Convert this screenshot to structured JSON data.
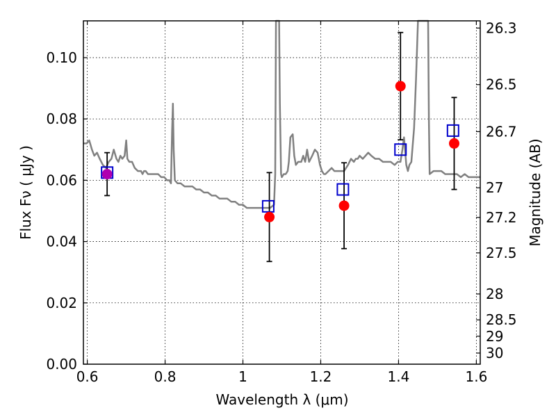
{
  "chart_data": {
    "type": "scatter",
    "xlabel": "Wavelength  λ (μm)",
    "ylabel": "Flux  Fν  ( μJy )",
    "ylabel_right": "Magnitude (AB)",
    "xlim": [
      0.59,
      1.61
    ],
    "ylim": [
      0.0,
      0.112
    ],
    "grid": true,
    "x_ticks": [
      {
        "v": 0.6,
        "label": "0.6"
      },
      {
        "v": 0.8,
        "label": "0.8"
      },
      {
        "v": 1.0,
        "label": "1"
      },
      {
        "v": 1.2,
        "label": "1.2"
      },
      {
        "v": 1.4,
        "label": "1.4"
      },
      {
        "v": 1.6,
        "label": "1.6"
      }
    ],
    "y_ticks": [
      {
        "v": 0.0,
        "label": "0.00"
      },
      {
        "v": 0.02,
        "label": "0.02"
      },
      {
        "v": 0.04,
        "label": "0.04"
      },
      {
        "v": 0.06,
        "label": "0.06"
      },
      {
        "v": 0.08,
        "label": "0.08"
      },
      {
        "v": 0.1,
        "label": "0.10"
      }
    ],
    "y_ticks_right": [
      {
        "v": 26.3,
        "label": "26.3"
      },
      {
        "v": 26.5,
        "label": "26.5"
      },
      {
        "v": 26.7,
        "label": "26.7"
      },
      {
        "v": 27.0,
        "label": "27"
      },
      {
        "v": 27.2,
        "label": "27.2"
      },
      {
        "v": 27.5,
        "label": "27.5"
      },
      {
        "v": 28.0,
        "label": "28"
      },
      {
        "v": 28.5,
        "label": "28.5"
      },
      {
        "v": 29.0,
        "label": "29"
      },
      {
        "v": 30.0,
        "label": "30"
      }
    ],
    "series": [
      {
        "kind": "line",
        "color": "#808080",
        "points": [
          [
            0.59,
            0.072
          ],
          [
            0.598,
            0.072
          ],
          [
            0.605,
            0.073
          ],
          [
            0.612,
            0.07
          ],
          [
            0.618,
            0.068
          ],
          [
            0.625,
            0.069
          ],
          [
            0.632,
            0.067
          ],
          [
            0.64,
            0.065
          ],
          [
            0.648,
            0.064
          ],
          [
            0.655,
            0.066
          ],
          [
            0.662,
            0.067
          ],
          [
            0.668,
            0.07
          ],
          [
            0.675,
            0.067
          ],
          [
            0.68,
            0.066
          ],
          [
            0.685,
            0.068
          ],
          [
            0.69,
            0.067
          ],
          [
            0.696,
            0.068
          ],
          [
            0.7,
            0.073
          ],
          [
            0.703,
            0.067
          ],
          [
            0.708,
            0.066
          ],
          [
            0.715,
            0.066
          ],
          [
            0.722,
            0.064
          ],
          [
            0.73,
            0.063
          ],
          [
            0.738,
            0.063
          ],
          [
            0.742,
            0.062
          ],
          [
            0.746,
            0.063
          ],
          [
            0.75,
            0.063
          ],
          [
            0.756,
            0.062
          ],
          [
            0.762,
            0.062
          ],
          [
            0.768,
            0.062
          ],
          [
            0.775,
            0.062
          ],
          [
            0.782,
            0.062
          ],
          [
            0.79,
            0.061
          ],
          [
            0.798,
            0.061
          ],
          [
            0.805,
            0.06
          ],
          [
            0.811,
            0.06
          ],
          [
            0.815,
            0.059
          ],
          [
            0.818,
            0.076
          ],
          [
            0.82,
            0.085
          ],
          [
            0.822,
            0.07
          ],
          [
            0.825,
            0.06
          ],
          [
            0.832,
            0.059
          ],
          [
            0.84,
            0.059
          ],
          [
            0.85,
            0.058
          ],
          [
            0.86,
            0.058
          ],
          [
            0.87,
            0.058
          ],
          [
            0.88,
            0.057
          ],
          [
            0.89,
            0.057
          ],
          [
            0.9,
            0.056
          ],
          [
            0.91,
            0.056
          ],
          [
            0.92,
            0.055
          ],
          [
            0.93,
            0.055
          ],
          [
            0.94,
            0.054
          ],
          [
            0.95,
            0.054
          ],
          [
            0.96,
            0.054
          ],
          [
            0.97,
            0.053
          ],
          [
            0.98,
            0.053
          ],
          [
            0.99,
            0.052
          ],
          [
            1.0,
            0.052
          ],
          [
            1.01,
            0.051
          ],
          [
            1.02,
            0.051
          ],
          [
            1.03,
            0.051
          ],
          [
            1.04,
            0.051
          ],
          [
            1.05,
            0.051
          ],
          [
            1.06,
            0.051
          ],
          [
            1.07,
            0.051
          ],
          [
            1.08,
            0.052
          ],
          [
            1.083,
            0.062
          ],
          [
            1.085,
            0.112
          ],
          [
            1.093,
            0.112
          ],
          [
            1.095,
            0.085
          ],
          [
            1.098,
            0.062
          ],
          [
            1.1,
            0.061
          ],
          [
            1.105,
            0.062
          ],
          [
            1.11,
            0.062
          ],
          [
            1.115,
            0.063
          ],
          [
            1.118,
            0.066
          ],
          [
            1.122,
            0.074
          ],
          [
            1.128,
            0.075
          ],
          [
            1.132,
            0.068
          ],
          [
            1.136,
            0.065
          ],
          [
            1.142,
            0.066
          ],
          [
            1.15,
            0.066
          ],
          [
            1.155,
            0.068
          ],
          [
            1.16,
            0.066
          ],
          [
            1.165,
            0.07
          ],
          [
            1.17,
            0.066
          ],
          [
            1.178,
            0.068
          ],
          [
            1.185,
            0.07
          ],
          [
            1.192,
            0.069
          ],
          [
            1.198,
            0.065
          ],
          [
            1.203,
            0.063
          ],
          [
            1.208,
            0.062
          ],
          [
            1.212,
            0.062
          ],
          [
            1.22,
            0.063
          ],
          [
            1.228,
            0.064
          ],
          [
            1.235,
            0.063
          ],
          [
            1.242,
            0.063
          ],
          [
            1.25,
            0.063
          ],
          [
            1.26,
            0.063
          ],
          [
            1.265,
            0.064
          ],
          [
            1.27,
            0.065
          ],
          [
            1.278,
            0.067
          ],
          [
            1.285,
            0.066
          ],
          [
            1.29,
            0.067
          ],
          [
            1.295,
            0.067
          ],
          [
            1.3,
            0.068
          ],
          [
            1.308,
            0.067
          ],
          [
            1.315,
            0.068
          ],
          [
            1.322,
            0.069
          ],
          [
            1.33,
            0.068
          ],
          [
            1.34,
            0.067
          ],
          [
            1.35,
            0.067
          ],
          [
            1.36,
            0.066
          ],
          [
            1.37,
            0.066
          ],
          [
            1.38,
            0.066
          ],
          [
            1.39,
            0.065
          ],
          [
            1.398,
            0.066
          ],
          [
            1.405,
            0.066
          ],
          [
            1.41,
            0.07
          ],
          [
            1.414,
            0.074
          ],
          [
            1.418,
            0.068
          ],
          [
            1.42,
            0.065
          ],
          [
            1.424,
            0.063
          ],
          [
            1.428,
            0.065
          ],
          [
            1.433,
            0.066
          ],
          [
            1.44,
            0.077
          ],
          [
            1.445,
            0.093
          ],
          [
            1.45,
            0.112
          ],
          [
            1.476,
            0.112
          ],
          [
            1.478,
            0.08
          ],
          [
            1.48,
            0.062
          ],
          [
            1.49,
            0.063
          ],
          [
            1.5,
            0.063
          ],
          [
            1.51,
            0.063
          ],
          [
            1.52,
            0.062
          ],
          [
            1.53,
            0.062
          ],
          [
            1.54,
            0.062
          ],
          [
            1.55,
            0.062
          ],
          [
            1.56,
            0.061
          ],
          [
            1.57,
            0.062
          ],
          [
            1.58,
            0.061
          ],
          [
            1.59,
            0.061
          ],
          [
            1.6,
            0.061
          ],
          [
            1.61,
            0.061
          ]
        ]
      },
      {
        "kind": "squares",
        "color": "#0000cc",
        "points": [
          [
            0.651,
            0.0625
          ],
          [
            1.065,
            0.0515
          ],
          [
            1.257,
            0.057
          ],
          [
            1.405,
            0.07
          ],
          [
            1.54,
            0.0762
          ]
        ]
      },
      {
        "kind": "points_with_errors",
        "color": "#ff0000",
        "points": [
          {
            "x": 0.651,
            "y": 0.062,
            "err": 0.007,
            "color": "#b000b0"
          },
          {
            "x": 1.068,
            "y": 0.048,
            "err": 0.0145
          },
          {
            "x": 1.26,
            "y": 0.0517,
            "err": 0.014
          },
          {
            "x": 1.405,
            "y": 0.0907,
            "err": 0.0175
          },
          {
            "x": 1.543,
            "y": 0.072,
            "err": 0.015
          }
        ]
      }
    ]
  }
}
